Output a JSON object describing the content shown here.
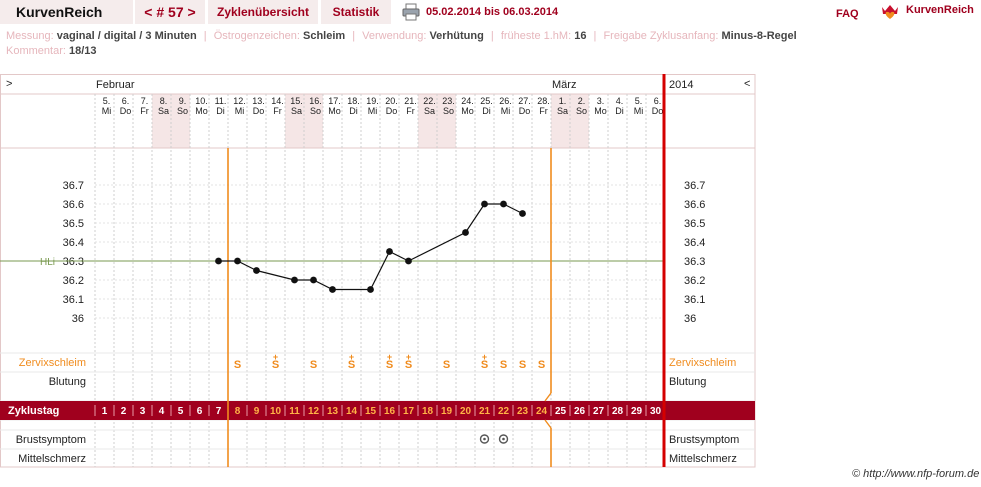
{
  "header": {
    "app_title": "KurvenReich",
    "cycle_nav": "< # 57 >",
    "tabs": [
      "Zyklenübersicht",
      "Statistik"
    ],
    "date_range": "05.02.2014 bis 06.03.2014",
    "faq": "FAQ",
    "brand": "KurvenReich",
    "print_icon": "printer-icon",
    "brand_icon": "crown-heart-icon"
  },
  "info": {
    "messung_label": "Messung:",
    "messung_value": "vaginal / digital / 3 Minuten",
    "oestrogen_label": "Östrogenzeichen:",
    "oestrogen_value": "Schleim",
    "verwendung_label": "Verwendung:",
    "verwendung_value": "Verhütung",
    "hm_label": "früheste 1.hM:",
    "hm_value": "16",
    "freigabe_label": "Freigabe Zyklusanfang:",
    "freigabe_value": "Minus-8-Regel",
    "kommentar_label": "Kommentar:",
    "kommentar_value": "18/13"
  },
  "chart": {
    "nav_left": ">",
    "nav_right": "<",
    "year": "2014",
    "months": [
      {
        "name": "Februar",
        "start_index": 0
      },
      {
        "name": "März",
        "start_index": 24
      }
    ],
    "days": [
      {
        "date": "5.",
        "weekday": "Mi"
      },
      {
        "date": "6.",
        "weekday": "Do"
      },
      {
        "date": "7.",
        "weekday": "Fr"
      },
      {
        "date": "8.",
        "weekday": "Sa"
      },
      {
        "date": "9.",
        "weekday": "So"
      },
      {
        "date": "10.",
        "weekday": "Mo"
      },
      {
        "date": "11.",
        "weekday": "Di"
      },
      {
        "date": "12.",
        "weekday": "Mi"
      },
      {
        "date": "13.",
        "weekday": "Do"
      },
      {
        "date": "14.",
        "weekday": "Fr"
      },
      {
        "date": "15.",
        "weekday": "Sa"
      },
      {
        "date": "16.",
        "weekday": "So"
      },
      {
        "date": "17.",
        "weekday": "Mo"
      },
      {
        "date": "18.",
        "weekday": "Di"
      },
      {
        "date": "19.",
        "weekday": "Mi"
      },
      {
        "date": "20.",
        "weekday": "Do"
      },
      {
        "date": "21.",
        "weekday": "Fr"
      },
      {
        "date": "22.",
        "weekday": "Sa"
      },
      {
        "date": "23.",
        "weekday": "So"
      },
      {
        "date": "24.",
        "weekday": "Mo"
      },
      {
        "date": "25.",
        "weekday": "Di"
      },
      {
        "date": "26.",
        "weekday": "Mi"
      },
      {
        "date": "27.",
        "weekday": "Do"
      },
      {
        "date": "28.",
        "weekday": "Fr"
      },
      {
        "date": "1.",
        "weekday": "Sa"
      },
      {
        "date": "2.",
        "weekday": "So"
      },
      {
        "date": "3.",
        "weekday": "Mo"
      },
      {
        "date": "4.",
        "weekday": "Di"
      },
      {
        "date": "5.",
        "weekday": "Mi"
      },
      {
        "date": "6.",
        "weekday": "Do"
      }
    ],
    "weekend_indices": [
      3,
      4,
      10,
      11,
      17,
      18,
      24,
      25
    ],
    "temp_ticks": [
      "36.7",
      "36.6",
      "36.5",
      "36.4",
      "36.3",
      "36.2",
      "36.1",
      "36"
    ],
    "hli_label": "HLi",
    "hli_value": 36.3,
    "row_labels": {
      "cervix": "Zervixschleim",
      "bleeding": "Blutung",
      "cycle_day": "Zyklustag",
      "breast": "Brustsymptom",
      "mittelschmerz": "Mittelschmerz"
    },
    "cervix_symbols": [
      "",
      "",
      "",
      "",
      "",
      "",
      "",
      "S",
      "",
      "S+",
      "",
      "S",
      "",
      "S+",
      "",
      "S+",
      "S+",
      "",
      "S",
      "",
      "S+",
      "S",
      "S",
      "S",
      "",
      "",
      "",
      "",
      "",
      ""
    ],
    "cycle_days": [
      "1",
      "2",
      "3",
      "4",
      "5",
      "6",
      "7",
      "8",
      "9",
      "10",
      "11",
      "12",
      "13",
      "14",
      "15",
      "16",
      "17",
      "18",
      "19",
      "20",
      "21",
      "22",
      "23",
      "24",
      "25",
      "26",
      "27",
      "28",
      "29",
      "30"
    ],
    "breast_symptom_days": [
      20,
      21
    ],
    "colors": {
      "accent": "#a0001e",
      "orange": "#f08c1e",
      "hli": "#7a9a50",
      "weekend": "#f5e6e6",
      "grid": "#cfcfcf"
    }
  },
  "chart_data": {
    "type": "line",
    "x": [
      "5.",
      "6.",
      "7.",
      "8.",
      "9.",
      "10.",
      "11.",
      "12.",
      "13.",
      "14.",
      "15.",
      "16.",
      "17.",
      "18.",
      "19.",
      "20.",
      "21.",
      "22.",
      "23.",
      "24.",
      "25.",
      "26.",
      "27.",
      "28.",
      "1.",
      "2.",
      "3.",
      "4.",
      "5.",
      "6."
    ],
    "series": [
      {
        "values": [
          null,
          null,
          null,
          null,
          null,
          null,
          36.3,
          36.3,
          36.25,
          null,
          36.2,
          36.2,
          36.15,
          null,
          36.15,
          36.35,
          36.3,
          null,
          null,
          36.45,
          36.6,
          36.6,
          36.55,
          null,
          null,
          null,
          null,
          null,
          null,
          null
        ]
      }
    ],
    "ylim": [
      36.0,
      36.7
    ],
    "hli": 36.3,
    "markers": {
      "before_day_index": 7,
      "after_day_index": 23
    }
  },
  "footer": {
    "credit": "© http://www.nfp-forum.de"
  }
}
